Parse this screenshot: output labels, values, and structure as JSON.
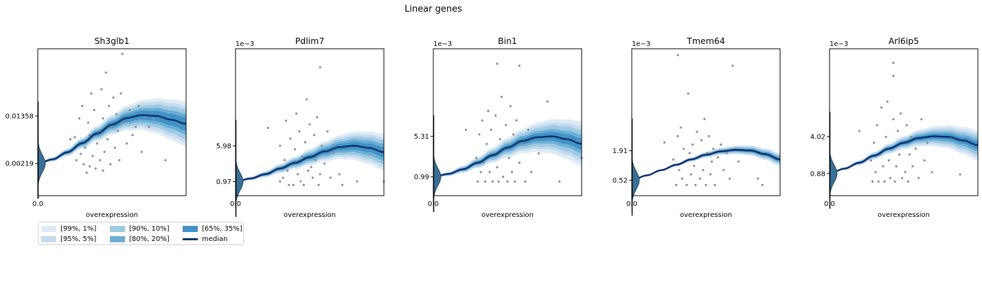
{
  "figure": {
    "title": "Linear genes"
  },
  "legend": {
    "items": [
      {
        "label": "[99%, 1%]",
        "color": "#deebf7"
      },
      {
        "label": "[95%, 5%]",
        "color": "#c6dbef"
      },
      {
        "label": "[90%, 10%]",
        "color": "#9ecae1"
      },
      {
        "label": "[80%, 20%]",
        "color": "#6baed6"
      },
      {
        "label": "[65%, 35%]",
        "color": "#4292c6"
      },
      {
        "label": "median",
        "color": "#08306b"
      }
    ]
  },
  "chart_data": [
    {
      "type": "line",
      "title": "Sh3glb1",
      "xlabel": "overexpression",
      "ylabel": "",
      "offset_text": "",
      "xticks": [
        "0.0"
      ],
      "yticks": [
        0.00219,
        0.01358
      ],
      "ytick_labels": [
        "0.00219",
        "0.01358"
      ],
      "xlim": [
        0,
        1
      ],
      "ylim": [
        -0.0055,
        0.0297
      ],
      "median": {
        "x": [
          0,
          0.1,
          0.2,
          0.3,
          0.4,
          0.5,
          0.6,
          0.7,
          0.8,
          0.9,
          1.0
        ],
        "y": [
          0.0022,
          0.0032,
          0.0049,
          0.0071,
          0.0094,
          0.0115,
          0.0131,
          0.0138,
          0.0136,
          0.0127,
          0.0117
        ]
      },
      "band_halfwidth": [
        0.0055,
        0.0045,
        0.0036,
        0.0025,
        0.0016
      ],
      "points": [
        [
          0.22,
          0.008
        ],
        [
          0.26,
          0.003
        ],
        [
          0.28,
          0.013
        ],
        [
          0.3,
          0.016
        ],
        [
          0.31,
          0.002
        ],
        [
          0.32,
          0.006
        ],
        [
          0.33,
          0.0
        ],
        [
          0.34,
          0.012
        ],
        [
          0.35,
          0.009
        ],
        [
          0.36,
          0.019
        ],
        [
          0.37,
          0.004
        ],
        [
          0.38,
          0.015
        ],
        [
          0.39,
          0.001
        ],
        [
          0.4,
          0.007
        ],
        [
          0.41,
          0.01
        ],
        [
          0.42,
          0.003
        ],
        [
          0.43,
          0.02
        ],
        [
          0.44,
          0.013
        ],
        [
          0.45,
          0.005
        ],
        [
          0.46,
          0.024
        ],
        [
          0.47,
          0.008
        ],
        [
          0.48,
          0.016
        ],
        [
          0.49,
          0.002
        ],
        [
          0.5,
          0.011
        ],
        [
          0.51,
          0.018
        ],
        [
          0.52,
          0.006
        ],
        [
          0.53,
          0.014
        ],
        [
          0.54,
          0.01
        ],
        [
          0.55,
          0.003
        ],
        [
          0.56,
          0.019
        ],
        [
          0.58,
          0.012
        ],
        [
          0.6,
          0.007
        ],
        [
          0.62,
          0.015
        ],
        [
          0.64,
          0.009
        ],
        [
          0.66,
          0.011
        ],
        [
          0.68,
          0.016
        ],
        [
          0.7,
          0.005
        ],
        [
          0.75,
          0.011
        ],
        [
          0.78,
          0.013
        ],
        [
          0.86,
          0.003
        ],
        [
          0.57,
          0.0285
        ],
        [
          0.25,
          0.0085
        ],
        [
          0.29,
          0.0045
        ],
        [
          0.35,
          0.0015
        ],
        [
          0.44,
          0.0005
        ]
      ]
    },
    {
      "type": "line",
      "title": "Pdlim7",
      "xlabel": "overexpression",
      "ylabel": "",
      "offset_text": "1e−3",
      "xticks": [
        "0.0"
      ],
      "yticks": [
        0.97,
        5.98
      ],
      "ytick_labels": [
        "0.97",
        "5.98"
      ],
      "xlim": [
        0,
        1
      ],
      "ylim": [
        -1.0,
        19.6
      ],
      "median": {
        "x": [
          0,
          0.1,
          0.2,
          0.3,
          0.4,
          0.5,
          0.6,
          0.7,
          0.8,
          0.9,
          1.0
        ],
        "y": [
          0.97,
          1.4,
          2.0,
          2.8,
          3.6,
          4.4,
          5.2,
          5.8,
          6.0,
          5.7,
          5.1
        ]
      },
      "band_halfwidth": [
        2.6,
        2.1,
        1.7,
        1.2,
        0.7
      ],
      "points": [
        [
          0.22,
          8.5
        ],
        [
          0.3,
          6.0
        ],
        [
          0.3,
          1.0
        ],
        [
          0.31,
          3.0
        ],
        [
          0.32,
          1.5
        ],
        [
          0.33,
          4.0
        ],
        [
          0.34,
          9.5
        ],
        [
          0.35,
          2.5
        ],
        [
          0.36,
          0.5
        ],
        [
          0.37,
          7.0
        ],
        [
          0.38,
          3.5
        ],
        [
          0.39,
          0.5
        ],
        [
          0.4,
          5.5
        ],
        [
          0.41,
          10.5
        ],
        [
          0.42,
          2.0
        ],
        [
          0.43,
          8.0
        ],
        [
          0.44,
          1.0
        ],
        [
          0.45,
          4.5
        ],
        [
          0.46,
          0.5
        ],
        [
          0.47,
          6.5
        ],
        [
          0.48,
          12.5
        ],
        [
          0.49,
          2.5
        ],
        [
          0.5,
          9.0
        ],
        [
          0.51,
          3.0
        ],
        [
          0.52,
          1.5
        ],
        [
          0.53,
          7.5
        ],
        [
          0.54,
          4.0
        ],
        [
          0.55,
          10.0
        ],
        [
          0.56,
          0.5
        ],
        [
          0.57,
          2.0
        ],
        [
          0.58,
          6.0
        ],
        [
          0.6,
          3.5
        ],
        [
          0.62,
          8.0
        ],
        [
          0.64,
          1.5
        ],
        [
          0.66,
          5.0
        ],
        [
          0.7,
          2.0
        ],
        [
          0.72,
          0.5
        ],
        [
          0.82,
          1.0
        ],
        [
          1.0,
          1.0
        ],
        [
          0.57,
          17.0
        ]
      ]
    },
    {
      "type": "line",
      "title": "Bin1",
      "xlabel": "overexpression",
      "ylabel": "",
      "offset_text": "1e−3",
      "xticks": [
        "0.0"
      ],
      "yticks": [
        0.99,
        5.31
      ],
      "ytick_labels": [
        "0.99",
        "5.31"
      ],
      "xlim": [
        0,
        1
      ],
      "ylim": [
        -1.0,
        14.6
      ],
      "median": {
        "x": [
          0,
          0.1,
          0.2,
          0.3,
          0.4,
          0.5,
          0.6,
          0.7,
          0.8,
          0.9,
          1.0
        ],
        "y": [
          0.99,
          1.3,
          1.8,
          2.5,
          3.3,
          4.1,
          4.8,
          5.2,
          5.3,
          5.0,
          4.5
        ]
      },
      "band_halfwidth": [
        2.4,
        1.9,
        1.5,
        1.0,
        0.6
      ],
      "points": [
        [
          0.22,
          6.0
        ],
        [
          0.29,
          3.0
        ],
        [
          0.3,
          0.5
        ],
        [
          0.31,
          5.5
        ],
        [
          0.32,
          1.5
        ],
        [
          0.33,
          7.0
        ],
        [
          0.34,
          2.5
        ],
        [
          0.35,
          0.5
        ],
        [
          0.36,
          4.5
        ],
        [
          0.37,
          8.0
        ],
        [
          0.38,
          1.5
        ],
        [
          0.39,
          6.0
        ],
        [
          0.4,
          0.5
        ],
        [
          0.41,
          3.5
        ],
        [
          0.42,
          7.5
        ],
        [
          0.43,
          2.0
        ],
        [
          0.44,
          0.5
        ],
        [
          0.45,
          5.0
        ],
        [
          0.46,
          9.5
        ],
        [
          0.47,
          1.0
        ],
        [
          0.48,
          4.0
        ],
        [
          0.49,
          6.5
        ],
        [
          0.5,
          0.5
        ],
        [
          0.51,
          3.0
        ],
        [
          0.52,
          8.5
        ],
        [
          0.53,
          1.5
        ],
        [
          0.54,
          5.5
        ],
        [
          0.55,
          0.5
        ],
        [
          0.56,
          7.0
        ],
        [
          0.58,
          2.5
        ],
        [
          0.6,
          4.5
        ],
        [
          0.62,
          0.5
        ],
        [
          0.64,
          6.0
        ],
        [
          0.66,
          1.5
        ],
        [
          0.71,
          3.5
        ],
        [
          0.77,
          9.0
        ],
        [
          0.85,
          0.5
        ],
        [
          1.0,
          3.0
        ],
        [
          0.43,
          13.0
        ],
        [
          0.58,
          12.8
        ]
      ]
    },
    {
      "type": "line",
      "title": "Tmem64",
      "xlabel": "overexpression",
      "ylabel": "",
      "offset_text": "1e−3",
      "xticks": [
        "0.0"
      ],
      "yticks": [
        0.52,
        1.91
      ],
      "ytick_labels": [
        "0.52",
        "1.91"
      ],
      "xlim": [
        0,
        1
      ],
      "ylim": [
        -0.2,
        6.7
      ],
      "median": {
        "x": [
          0,
          0.1,
          0.2,
          0.3,
          0.4,
          0.5,
          0.6,
          0.7,
          0.8,
          0.9,
          1.0
        ],
        "y": [
          0.52,
          0.75,
          1.0,
          1.25,
          1.5,
          1.72,
          1.88,
          1.95,
          1.92,
          1.75,
          1.5
        ]
      },
      "band_halfwidth": [
        0.32,
        0.26,
        0.2,
        0.14,
        0.08
      ],
      "points": [
        [
          0.22,
          2.3
        ],
        [
          0.28,
          1.5
        ],
        [
          0.3,
          0.3
        ],
        [
          0.31,
          2.6
        ],
        [
          0.32,
          1.0
        ],
        [
          0.33,
          3.0
        ],
        [
          0.34,
          0.6
        ],
        [
          0.35,
          2.0
        ],
        [
          0.36,
          1.4
        ],
        [
          0.37,
          0.3
        ],
        [
          0.38,
          4.6
        ],
        [
          0.39,
          1.8
        ],
        [
          0.4,
          0.8
        ],
        [
          0.41,
          2.2
        ],
        [
          0.42,
          1.2
        ],
        [
          0.43,
          0.3
        ],
        [
          0.44,
          2.8
        ],
        [
          0.45,
          1.6
        ],
        [
          0.46,
          0.6
        ],
        [
          0.47,
          2.4
        ],
        [
          0.48,
          1.0
        ],
        [
          0.49,
          3.4
        ],
        [
          0.5,
          0.3
        ],
        [
          0.51,
          1.8
        ],
        [
          0.52,
          2.6
        ],
        [
          0.53,
          0.8
        ],
        [
          0.54,
          1.4
        ],
        [
          0.55,
          2.0
        ],
        [
          0.56,
          0.3
        ],
        [
          0.58,
          1.6
        ],
        [
          0.6,
          2.2
        ],
        [
          0.62,
          1.0
        ],
        [
          0.64,
          1.8
        ],
        [
          0.66,
          0.6
        ],
        [
          0.7,
          2.0
        ],
        [
          0.72,
          1.4
        ],
        [
          0.85,
          0.6
        ],
        [
          0.88,
          0.3
        ],
        [
          0.31,
          6.4
        ],
        [
          0.68,
          5.9
        ]
      ]
    },
    {
      "type": "line",
      "title": "Arl6ip5",
      "xlabel": "overexpression",
      "ylabel": "",
      "offset_text": "1e−3",
      "xticks": [
        "0.0"
      ],
      "yticks": [
        0.88,
        4.02
      ],
      "ytick_labels": [
        "0.88",
        "4.02"
      ],
      "xlim": [
        0,
        1
      ],
      "ylim": [
        -1.0,
        11.5
      ],
      "median": {
        "x": [
          0,
          0.1,
          0.2,
          0.3,
          0.4,
          0.5,
          0.6,
          0.7,
          0.8,
          0.9,
          1.0
        ],
        "y": [
          0.88,
          1.3,
          1.8,
          2.4,
          3.0,
          3.5,
          3.9,
          4.05,
          4.0,
          3.7,
          3.3
        ]
      },
      "band_halfwidth": [
        1.3,
        1.05,
        0.8,
        0.55,
        0.32
      ],
      "points": [
        [
          0.2,
          4.5
        ],
        [
          0.28,
          2.0
        ],
        [
          0.29,
          0.2
        ],
        [
          0.3,
          3.5
        ],
        [
          0.31,
          1.0
        ],
        [
          0.32,
          5.0
        ],
        [
          0.33,
          0.2
        ],
        [
          0.34,
          2.5
        ],
        [
          0.35,
          6.5
        ],
        [
          0.36,
          1.5
        ],
        [
          0.37,
          0.2
        ],
        [
          0.38,
          4.0
        ],
        [
          0.39,
          7.0
        ],
        [
          0.4,
          2.0
        ],
        [
          0.41,
          0.5
        ],
        [
          0.42,
          3.0
        ],
        [
          0.43,
          5.5
        ],
        [
          0.44,
          0.2
        ],
        [
          0.45,
          1.5
        ],
        [
          0.46,
          4.5
        ],
        [
          0.47,
          2.5
        ],
        [
          0.48,
          6.0
        ],
        [
          0.49,
          0.5
        ],
        [
          0.5,
          3.5
        ],
        [
          0.51,
          1.0
        ],
        [
          0.52,
          5.0
        ],
        [
          0.53,
          0.2
        ],
        [
          0.54,
          2.5
        ],
        [
          0.55,
          4.0
        ],
        [
          0.56,
          1.5
        ],
        [
          0.58,
          3.0
        ],
        [
          0.6,
          0.5
        ],
        [
          0.62,
          5.5
        ],
        [
          0.64,
          2.0
        ],
        [
          0.66,
          3.5
        ],
        [
          0.69,
          1.0
        ],
        [
          0.88,
          0.8
        ],
        [
          0.43,
          10.3
        ],
        [
          0.43,
          9.2
        ]
      ]
    }
  ]
}
